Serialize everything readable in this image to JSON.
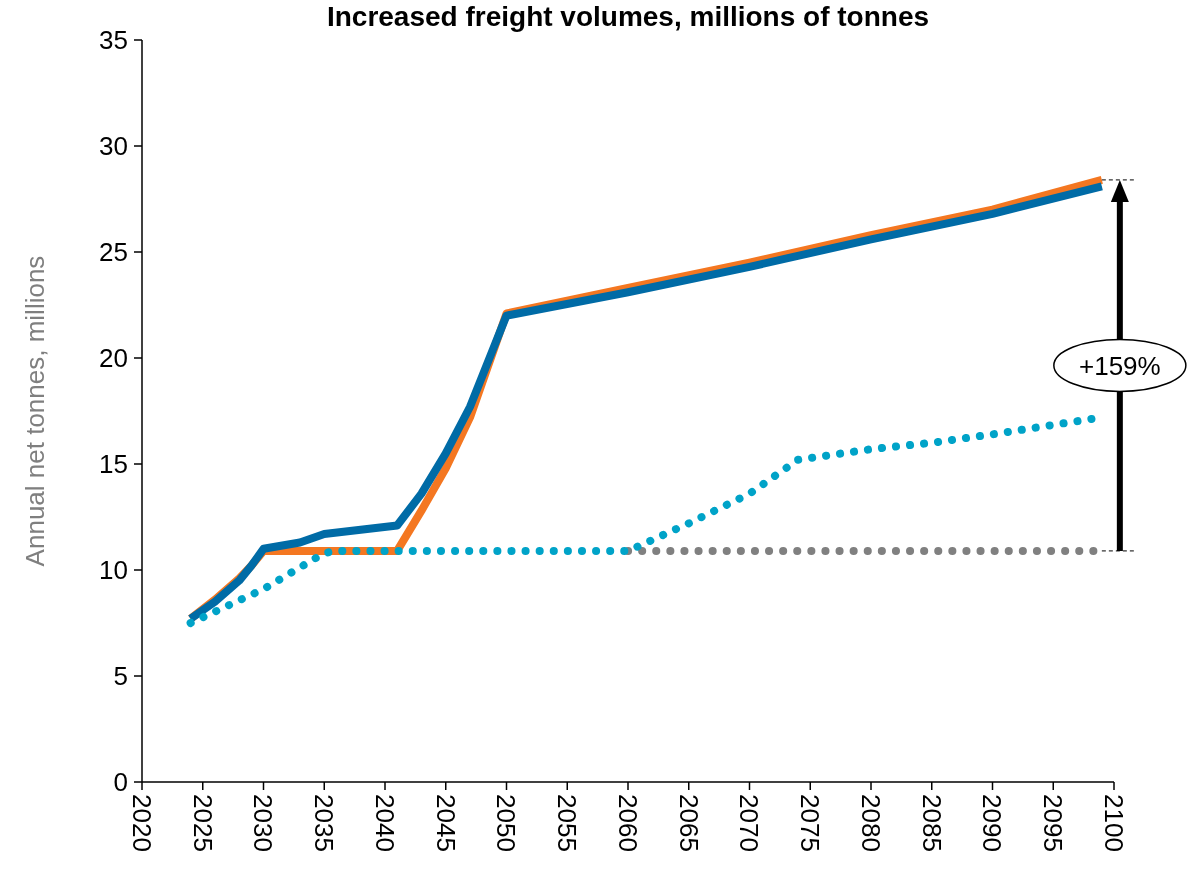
{
  "chart_data": {
    "type": "line",
    "title": "Increased freight volumes, millions of tonnes",
    "ylabel": "Annual net tonnes, millions",
    "xlim": [
      2020,
      2100
    ],
    "xticks": [
      2020,
      2025,
      2030,
      2035,
      2040,
      2045,
      2050,
      2055,
      2060,
      2065,
      2070,
      2075,
      2080,
      2085,
      2090,
      2095,
      2100
    ],
    "ylim": [
      0,
      35
    ],
    "yticks": [
      0,
      5,
      10,
      15,
      20,
      25,
      30,
      35
    ],
    "grid": false,
    "marker": "none",
    "series": [
      {
        "color": "#f47721",
        "line_style": "solid",
        "x": [
          2024,
          2026,
          2028,
          2029,
          2030,
          2035,
          2041,
          2043,
          2045,
          2047,
          2050,
          2060,
          2070,
          2080,
          2090,
          2099
        ],
        "values": [
          7.7,
          8.6,
          9.6,
          10.2,
          10.9,
          10.9,
          10.9,
          12.8,
          14.8,
          17.2,
          22.1,
          23.3,
          24.5,
          25.8,
          27.0,
          28.4
        ]
      },
      {
        "color": "#006ba6",
        "line_style": "solid",
        "x": [
          2024,
          2026,
          2028,
          2029,
          2030,
          2033,
          2035,
          2041,
          2043,
          2045,
          2047,
          2050,
          2060,
          2070,
          2080,
          2090,
          2099
        ],
        "values": [
          7.7,
          8.5,
          9.5,
          10.2,
          11.0,
          11.3,
          11.7,
          12.1,
          13.6,
          15.5,
          17.7,
          22.0,
          23.1,
          24.3,
          25.6,
          26.8,
          28.1
        ]
      },
      {
        "color": "#808080",
        "line_style": "dotted",
        "x": [
          2060,
          2099
        ],
        "values": [
          10.9,
          10.9
        ]
      },
      {
        "color": "#00a3c8",
        "line_style": "dotted",
        "x": [
          2024,
          2030,
          2035,
          2036,
          2060,
          2065,
          2070,
          2074,
          2080,
          2085,
          2090,
          2099
        ],
        "values": [
          7.5,
          9.1,
          10.8,
          10.9,
          10.9,
          12.2,
          13.6,
          15.2,
          15.7,
          16.0,
          16.4,
          17.2
        ]
      }
    ],
    "annotations": [
      "+159%"
    ]
  }
}
